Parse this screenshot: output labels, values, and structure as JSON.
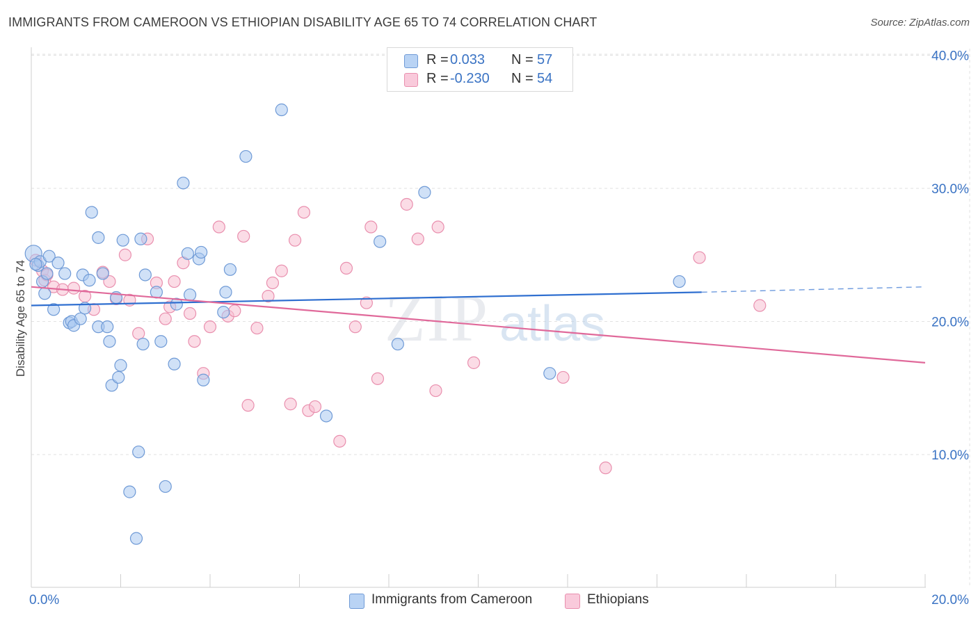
{
  "title": "IMMIGRANTS FROM CAMEROON VS ETHIOPIAN DISABILITY AGE 65 TO 74 CORRELATION CHART",
  "source": "Source: ZipAtlas.com",
  "watermark": {
    "zip": "ZIP",
    "atlas": "atlas"
  },
  "colors": {
    "blue_fill": "#a9c8f0",
    "blue_stroke": "#6f9ad6",
    "blue_line": "#2f6fd0",
    "pink_fill": "#f7bfd2",
    "pink_stroke": "#e98fae",
    "pink_line": "#e0699a",
    "tick_text": "#3a73c4",
    "grid": "#e2e2e2"
  },
  "legend": {
    "rows": [
      {
        "r_label": "R =",
        "r_value": " 0.033",
        "n_label": "N =",
        "n_value": "57"
      },
      {
        "r_label": "R =",
        "r_value": "-0.230",
        "n_label": "N =",
        "n_value": "54"
      }
    ]
  },
  "chart_data": {
    "type": "scatter",
    "title": "IMMIGRANTS FROM CAMEROON VS ETHIOPIAN DISABILITY AGE 65 TO 74 CORRELATION CHART",
    "xlabel": "",
    "ylabel": "Disability Age 65 to 74",
    "xlim": [
      0,
      20
    ],
    "ylim": [
      0,
      40
    ],
    "x_tick_labels": [
      "0.0%",
      "20.0%"
    ],
    "y_ticks": [
      10,
      20,
      30,
      40
    ],
    "y_tick_labels": [
      "10.0%",
      "20.0%",
      "30.0%",
      "40.0%"
    ],
    "grid": true,
    "legend_position": "top-center",
    "series": [
      {
        "name": "Immigrants from Cameroon",
        "color": "#a9c8f0",
        "trend": {
          "x": [
            0,
            15
          ],
          "y": [
            21.2,
            22.2
          ],
          "dashed_to": [
            20,
            22.6
          ]
        },
        "points": [
          [
            0.05,
            25.1
          ],
          [
            0.15,
            24.2
          ],
          [
            0.2,
            24.5
          ],
          [
            0.25,
            23.0
          ],
          [
            0.3,
            22.1
          ],
          [
            0.35,
            23.6
          ],
          [
            0.4,
            24.9
          ],
          [
            0.5,
            20.9
          ],
          [
            0.6,
            24.4
          ],
          [
            0.75,
            23.6
          ],
          [
            0.85,
            19.9
          ],
          [
            0.9,
            20.0
          ],
          [
            0.95,
            19.7
          ],
          [
            1.1,
            20.2
          ],
          [
            1.15,
            23.5
          ],
          [
            1.2,
            21.0
          ],
          [
            1.3,
            23.1
          ],
          [
            1.35,
            28.2
          ],
          [
            1.5,
            19.6
          ],
          [
            1.5,
            26.3
          ],
          [
            1.6,
            23.6
          ],
          [
            1.7,
            19.6
          ],
          [
            1.75,
            18.5
          ],
          [
            1.8,
            15.2
          ],
          [
            1.9,
            21.8
          ],
          [
            1.95,
            15.8
          ],
          [
            2.0,
            16.7
          ],
          [
            2.05,
            26.1
          ],
          [
            2.2,
            7.2
          ],
          [
            2.35,
            3.7
          ],
          [
            2.4,
            10.2
          ],
          [
            2.45,
            26.2
          ],
          [
            2.5,
            18.3
          ],
          [
            2.55,
            23.5
          ],
          [
            2.8,
            22.2
          ],
          [
            2.9,
            18.5
          ],
          [
            3.0,
            7.6
          ],
          [
            3.2,
            16.8
          ],
          [
            3.25,
            21.3
          ],
          [
            3.4,
            30.4
          ],
          [
            3.5,
            25.1
          ],
          [
            3.55,
            22.0
          ],
          [
            3.75,
            24.7
          ],
          [
            3.8,
            25.2
          ],
          [
            3.85,
            15.6
          ],
          [
            4.3,
            20.7
          ],
          [
            4.35,
            22.2
          ],
          [
            4.45,
            23.9
          ],
          [
            4.8,
            32.4
          ],
          [
            5.6,
            35.9
          ],
          [
            6.6,
            12.9
          ],
          [
            7.8,
            26.0
          ],
          [
            8.2,
            18.3
          ],
          [
            8.8,
            29.7
          ],
          [
            11.6,
            16.1
          ],
          [
            14.5,
            23.0
          ],
          [
            0.1,
            24.3
          ]
        ]
      },
      {
        "name": "Ethiopians",
        "color": "#f7bfd2",
        "trend": {
          "x": [
            0,
            20
          ],
          "y": [
            22.6,
            16.9
          ]
        },
        "points": [
          [
            0.1,
            24.6
          ],
          [
            0.25,
            23.8
          ],
          [
            0.3,
            23.1
          ],
          [
            0.35,
            23.5
          ],
          [
            0.5,
            22.6
          ],
          [
            0.7,
            22.4
          ],
          [
            0.95,
            22.5
          ],
          [
            1.2,
            21.9
          ],
          [
            1.4,
            20.9
          ],
          [
            1.6,
            23.7
          ],
          [
            1.75,
            23.0
          ],
          [
            1.9,
            21.7
          ],
          [
            2.1,
            25.0
          ],
          [
            2.2,
            21.6
          ],
          [
            2.4,
            19.1
          ],
          [
            2.6,
            26.2
          ],
          [
            2.8,
            22.9
          ],
          [
            3.0,
            20.2
          ],
          [
            3.1,
            21.1
          ],
          [
            3.2,
            23.0
          ],
          [
            3.4,
            24.4
          ],
          [
            3.55,
            20.6
          ],
          [
            3.65,
            18.5
          ],
          [
            3.85,
            16.1
          ],
          [
            4.0,
            19.6
          ],
          [
            4.2,
            27.1
          ],
          [
            4.4,
            20.4
          ],
          [
            4.55,
            20.8
          ],
          [
            4.75,
            26.4
          ],
          [
            4.85,
            13.7
          ],
          [
            5.05,
            19.5
          ],
          [
            5.3,
            21.9
          ],
          [
            5.4,
            22.9
          ],
          [
            5.6,
            23.8
          ],
          [
            5.8,
            13.8
          ],
          [
            5.9,
            26.1
          ],
          [
            6.1,
            28.2
          ],
          [
            6.2,
            13.3
          ],
          [
            6.35,
            13.6
          ],
          [
            6.9,
            11.0
          ],
          [
            7.05,
            24.0
          ],
          [
            7.25,
            19.6
          ],
          [
            7.5,
            21.4
          ],
          [
            7.6,
            27.1
          ],
          [
            7.75,
            15.7
          ],
          [
            8.4,
            28.8
          ],
          [
            8.65,
            26.2
          ],
          [
            9.05,
            14.8
          ],
          [
            9.1,
            27.1
          ],
          [
            9.9,
            16.9
          ],
          [
            11.9,
            15.8
          ],
          [
            12.85,
            9.0
          ],
          [
            14.95,
            24.8
          ],
          [
            16.3,
            21.2
          ]
        ]
      }
    ]
  }
}
